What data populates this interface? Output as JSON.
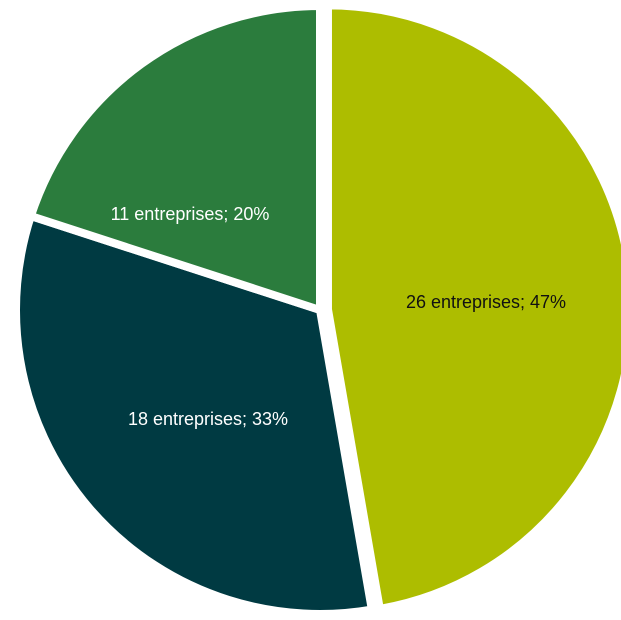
{
  "chart_data": {
    "type": "pie",
    "slices": [
      {
        "label": "26 entreprises; 47%",
        "count": 26,
        "percent": 47,
        "color": "#adbd00",
        "label_color": "#111111"
      },
      {
        "label": "18 entreprises; 33%",
        "count": 18,
        "percent": 33,
        "color": "#003a42",
        "label_color": "#ffffff"
      },
      {
        "label": "11 entreprises; 20%",
        "count": 11,
        "percent": 20,
        "color": "#2b7c3d",
        "label_color": "#ffffff"
      }
    ]
  }
}
